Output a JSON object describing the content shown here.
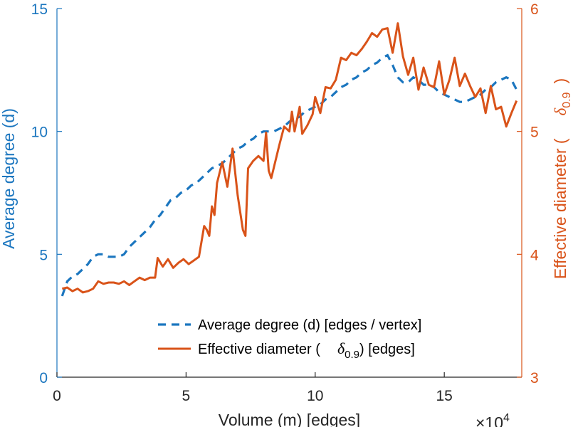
{
  "chart_data": {
    "type": "line",
    "xlabel": "Volume (m) [edges]",
    "x_multiplier": "×10",
    "x_multiplier_exponent": "4",
    "xlim": [
      0,
      18
    ],
    "x_ticks": [
      "0",
      "5",
      "10",
      "15"
    ],
    "left_axis": {
      "label": "Average degree (d)",
      "ylim": [
        0,
        15
      ],
      "ticks": [
        "0",
        "5",
        "10",
        "15"
      ],
      "color": "#1b76bf"
    },
    "right_axis": {
      "label_prefix": "Effective diameter (",
      "label_symbol": "δ",
      "label_subscript": "0.9",
      "label_suffix": ")",
      "ylim": [
        3,
        6
      ],
      "ticks": [
        "3",
        "4",
        "5",
        "6"
      ],
      "color": "#d95319"
    },
    "legend": {
      "placement": "lower-right",
      "entries": [
        {
          "text": "Average degree (d) [edges / vertex]"
        },
        {
          "prefix": "Effective diameter (",
          "symbol": "δ",
          "subscript": "0.9",
          "suffix": ") [edges]"
        }
      ]
    },
    "series": [
      {
        "name": "Average degree (d) [edges / vertex]",
        "axis": "left",
        "style": "dashed",
        "color": "#1b76bf",
        "x": [
          0.2,
          0.4,
          0.6,
          0.8,
          1.0,
          1.2,
          1.4,
          1.6,
          1.8,
          2.0,
          2.2,
          2.4,
          2.6,
          2.8,
          3.0,
          3.2,
          3.4,
          3.6,
          3.8,
          4.0,
          4.2,
          4.4,
          4.6,
          4.8,
          5.0,
          5.2,
          5.4,
          5.6,
          5.8,
          6.0,
          6.2,
          6.4,
          6.6,
          6.8,
          7.0,
          7.2,
          7.4,
          7.6,
          7.8,
          8.0,
          8.2,
          8.4,
          8.6,
          8.8,
          9.0,
          9.2,
          9.4,
          9.6,
          9.8,
          10.0,
          10.2,
          10.4,
          10.6,
          10.8,
          11.0,
          11.2,
          11.4,
          11.6,
          11.8,
          12.0,
          12.2,
          12.4,
          12.6,
          12.8,
          13.0,
          13.2,
          13.4,
          13.6,
          13.8,
          14.0,
          14.2,
          14.4,
          14.6,
          14.8,
          15.0,
          15.2,
          15.4,
          15.6,
          15.8,
          16.0,
          16.2,
          16.4,
          16.6,
          16.8,
          17.0,
          17.2,
          17.4,
          17.6,
          17.8
        ],
        "values": [
          3.3,
          3.9,
          4.1,
          4.2,
          4.4,
          4.6,
          4.9,
          5.0,
          5.0,
          4.9,
          4.9,
          4.9,
          5.0,
          5.3,
          5.5,
          5.7,
          5.9,
          6.1,
          6.4,
          6.6,
          6.9,
          7.2,
          7.3,
          7.5,
          7.6,
          7.8,
          7.9,
          8.1,
          8.3,
          8.5,
          8.6,
          8.7,
          8.9,
          9.1,
          9.3,
          9.4,
          9.6,
          9.7,
          9.9,
          10.0,
          10.0,
          10.0,
          10.1,
          10.2,
          10.4,
          10.5,
          10.6,
          10.8,
          10.9,
          11.0,
          11.1,
          11.3,
          11.4,
          11.6,
          11.8,
          11.9,
          12.1,
          12.2,
          12.4,
          12.5,
          12.7,
          12.8,
          13.0,
          13.1,
          12.7,
          12.2,
          12.0,
          12.0,
          12.2,
          12.1,
          11.9,
          11.9,
          11.8,
          11.6,
          11.5,
          11.4,
          11.3,
          11.2,
          11.2,
          11.3,
          11.4,
          11.5,
          11.7,
          11.8,
          12.0,
          12.1,
          12.2,
          12.1,
          11.7
        ]
      },
      {
        "name": "Effective diameter (δ0.9) [edges]",
        "axis": "right",
        "style": "solid",
        "color": "#d95319",
        "x": [
          0.2,
          0.4,
          0.6,
          0.8,
          1.0,
          1.2,
          1.4,
          1.6,
          1.8,
          2.0,
          2.2,
          2.4,
          2.6,
          2.8,
          3.0,
          3.2,
          3.4,
          3.6,
          3.8,
          3.9,
          4.1,
          4.3,
          4.5,
          4.7,
          4.9,
          5.1,
          5.3,
          5.5,
          5.7,
          5.8,
          5.9,
          6.0,
          6.1,
          6.2,
          6.4,
          6.6,
          6.8,
          7.0,
          7.2,
          7.3,
          7.4,
          7.6,
          7.8,
          8.0,
          8.1,
          8.2,
          8.3,
          8.6,
          8.8,
          9.0,
          9.1,
          9.2,
          9.4,
          9.5,
          9.7,
          9.9,
          10.0,
          10.2,
          10.4,
          10.6,
          10.8,
          11.0,
          11.2,
          11.4,
          11.6,
          11.8,
          12.0,
          12.2,
          12.4,
          12.6,
          12.8,
          13.0,
          13.2,
          13.4,
          13.6,
          13.8,
          14.0,
          14.2,
          14.4,
          14.6,
          14.8,
          15.0,
          15.2,
          15.4,
          15.6,
          15.8,
          16.0,
          16.2,
          16.4,
          16.6,
          16.8,
          17.0,
          17.2,
          17.4,
          17.6,
          17.8
        ],
        "values": [
          3.72,
          3.73,
          3.7,
          3.72,
          3.69,
          3.7,
          3.72,
          3.78,
          3.76,
          3.77,
          3.77,
          3.76,
          3.78,
          3.75,
          3.78,
          3.81,
          3.79,
          3.81,
          3.81,
          3.97,
          3.9,
          3.96,
          3.89,
          3.93,
          3.96,
          3.92,
          3.95,
          3.98,
          4.23,
          4.2,
          4.15,
          4.39,
          4.32,
          4.58,
          4.75,
          4.55,
          4.86,
          4.48,
          4.2,
          4.15,
          4.7,
          4.76,
          4.8,
          4.76,
          4.99,
          4.68,
          4.62,
          4.88,
          5.04,
          5.0,
          5.16,
          5.0,
          5.2,
          4.98,
          5.05,
          5.14,
          5.28,
          5.15,
          5.36,
          5.35,
          5.42,
          5.6,
          5.58,
          5.64,
          5.62,
          5.67,
          5.73,
          5.8,
          5.77,
          5.83,
          5.84,
          5.64,
          5.88,
          5.61,
          5.46,
          5.6,
          5.34,
          5.52,
          5.38,
          5.36,
          5.57,
          5.3,
          5.42,
          5.6,
          5.37,
          5.47,
          5.37,
          5.28,
          5.35,
          5.15,
          5.37,
          5.18,
          5.2,
          5.04,
          5.15,
          5.25
        ]
      }
    ]
  }
}
